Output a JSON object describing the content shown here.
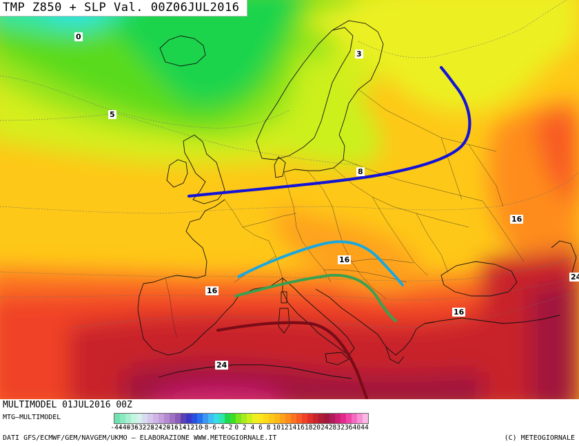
{
  "title": "TMP  Z850  +  SLP  Val.  00Z06JUL2016",
  "run_label": "MULTIMODEL  01JUL2016  00Z",
  "source_label": "MTG—MULTIMODEL",
  "credits": "DATI  GFS/ECMWF/GEM/NAVGEM/UKMO  —  ELABORAZIONE  WWW.METEOGIORNALE.IT",
  "copyright": "(C)  METEOGIORNALE",
  "legend": {
    "tick_labels": [
      "-44",
      "-40",
      "-36",
      "-32",
      "-28",
      "-24",
      "-20",
      "-16",
      "-14",
      "-12",
      "-10",
      "-8",
      "-6",
      "-4",
      "-2",
      "0",
      "2",
      "4",
      "6",
      "8",
      "10",
      "12",
      "14",
      "16",
      "18",
      "20",
      "24",
      "28",
      "32",
      "36",
      "40",
      "44"
    ],
    "colors": [
      "#6ee3b0",
      "#8ae9c0",
      "#a6efcf",
      "#c2f5de",
      "#d6f0ee",
      "#d8dcef",
      "#d6c8ec",
      "#d0b4e6",
      "#c4a0dc",
      "#b48ad0",
      "#a070c4",
      "#8c5ab8",
      "#5a42b4",
      "#3a36c8",
      "#2a4ee0",
      "#2470f0",
      "#3a98f4",
      "#40bef4",
      "#36dcea",
      "#2ee6a8",
      "#1ed850",
      "#3cde22",
      "#78e61c",
      "#a6ec1c",
      "#ccf01e",
      "#ecf020",
      "#fde61e",
      "#fed81a",
      "#fec818",
      "#feb818",
      "#fea21a",
      "#fe8c1c",
      "#fc7220",
      "#f85a24",
      "#f04226",
      "#e02e28",
      "#c8242c",
      "#b01c34",
      "#a0183e",
      "#b01a58",
      "#cc1e72",
      "#e22a8c",
      "#ef44a6",
      "#f56ac0",
      "#f992d4",
      "#fbb8e4"
    ]
  },
  "isotherm_labels": [
    {
      "text": "0"
    },
    {
      "text": "5"
    },
    {
      "text": "3"
    },
    {
      "text": "8"
    },
    {
      "text": "16"
    },
    {
      "text": "16"
    },
    {
      "text": "16"
    },
    {
      "text": "16"
    },
    {
      "text": "24"
    },
    {
      "text": "24"
    }
  ],
  "colors": {
    "front_blue": "#1414d6",
    "front_cyan": "#1ca8dc",
    "front_green": "#3aa050",
    "front_dark_red": "#7a0c18"
  }
}
